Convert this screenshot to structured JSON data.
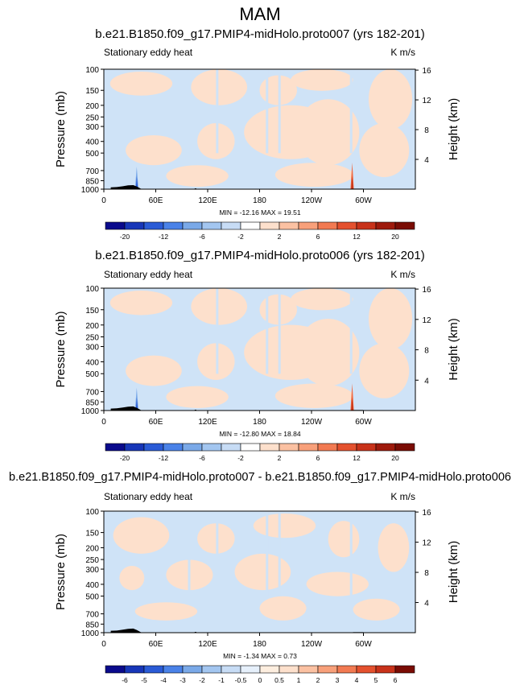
{
  "main_title": "MAM",
  "colors": {
    "light_blue": "#cfe3f7",
    "light_peach": "#fde0cc",
    "mid_blue": "#7aa9e8",
    "deep_blue": "#2a5bd6",
    "mid_red": "#f06b42",
    "deep_red": "#b8240c",
    "terrain": "#000000"
  },
  "chart_data": [
    {
      "type": "heatmap",
      "title": "b.e21.B1850.f09_g17.PMIP4-midHolo.proto007 (yrs 182-201)",
      "subtitle": "Stationary eddy heat",
      "units": "K m/s",
      "ylabel": "Pressure (mb)",
      "ylabel_right": "Height (km)",
      "x_ticks": [
        "0",
        "60E",
        "120E",
        "180",
        "120W",
        "60W"
      ],
      "x_tick_lon": [
        0,
        60,
        120,
        180,
        240,
        300
      ],
      "xlim": [
        0,
        360
      ],
      "y_ticks": [
        "100",
        "150",
        "200",
        "250",
        "300",
        "400",
        "500",
        "700",
        "850",
        "1000"
      ],
      "y_tick_p": [
        100,
        150,
        200,
        250,
        300,
        400,
        500,
        700,
        850,
        1000
      ],
      "ylim": [
        1000,
        100
      ],
      "height_ticks": [
        "16",
        "12",
        "8",
        "4"
      ],
      "height_km": [
        16,
        12,
        8,
        4
      ],
      "stats": "MIN = -12.16  MAX = 19.51",
      "min": -12.16,
      "max": 19.51,
      "colorbar_labels": [
        "-20",
        "-12",
        "-6",
        "-2",
        "2",
        "6",
        "12",
        "20"
      ],
      "colorbar_levels": [
        -20,
        -16,
        -12,
        -8,
        -6,
        -4,
        -2,
        -1,
        1,
        2,
        4,
        6,
        8,
        12,
        16,
        20
      ]
    },
    {
      "type": "heatmap",
      "title": "b.e21.B1850.f09_g17.PMIP4-midHolo.proto006 (yrs 182-201)",
      "subtitle": "Stationary eddy heat",
      "units": "K m/s",
      "ylabel": "Pressure (mb)",
      "ylabel_right": "Height (km)",
      "x_ticks": [
        "0",
        "60E",
        "120E",
        "180",
        "120W",
        "60W"
      ],
      "x_tick_lon": [
        0,
        60,
        120,
        180,
        240,
        300
      ],
      "xlim": [
        0,
        360
      ],
      "y_ticks": [
        "100",
        "150",
        "200",
        "250",
        "300",
        "400",
        "500",
        "700",
        "850",
        "1000"
      ],
      "y_tick_p": [
        100,
        150,
        200,
        250,
        300,
        400,
        500,
        700,
        850,
        1000
      ],
      "ylim": [
        1000,
        100
      ],
      "height_ticks": [
        "16",
        "12",
        "8",
        "4"
      ],
      "height_km": [
        16,
        12,
        8,
        4
      ],
      "stats": "MIN = -12.80  MAX = 18.84",
      "min": -12.8,
      "max": 18.84,
      "colorbar_labels": [
        "-20",
        "-12",
        "-6",
        "-2",
        "2",
        "6",
        "12",
        "20"
      ],
      "colorbar_levels": [
        -20,
        -16,
        -12,
        -8,
        -6,
        -4,
        -2,
        -1,
        1,
        2,
        4,
        6,
        8,
        12,
        16,
        20
      ]
    },
    {
      "type": "heatmap",
      "title": "b.e21.B1850.f09_g17.PMIP4-midHolo.proto007 - b.e21.B1850.f09_g17.PMIP4-midHolo.proto006",
      "subtitle": "Stationary eddy heat",
      "units": "K m/s",
      "ylabel": "Pressure (mb)",
      "ylabel_right": "Height (km)",
      "x_ticks": [
        "0",
        "60E",
        "120E",
        "180",
        "120W",
        "60W"
      ],
      "x_tick_lon": [
        0,
        60,
        120,
        180,
        240,
        300
      ],
      "xlim": [
        0,
        360
      ],
      "y_ticks": [
        "100",
        "150",
        "200",
        "250",
        "300",
        "400",
        "500",
        "700",
        "850",
        "1000"
      ],
      "y_tick_p": [
        100,
        150,
        200,
        250,
        300,
        400,
        500,
        700,
        850,
        1000
      ],
      "ylim": [
        1000,
        100
      ],
      "height_ticks": [
        "16",
        "12",
        "8",
        "4"
      ],
      "height_km": [
        16,
        12,
        8,
        4
      ],
      "stats": "MIN =  -1.34  MAX =   0.73",
      "min": -1.34,
      "max": 0.73,
      "colorbar_labels": [
        "-6",
        "-5",
        "-4",
        "-3",
        "-2",
        "-1",
        "-0.5",
        "0",
        "0.5",
        "1",
        "2",
        "3",
        "4",
        "5",
        "6"
      ],
      "colorbar_levels": [
        -6,
        -5,
        -4,
        -3,
        -2,
        -1,
        -0.5,
        0,
        0.5,
        1,
        2,
        3,
        4,
        5,
        6
      ]
    }
  ]
}
